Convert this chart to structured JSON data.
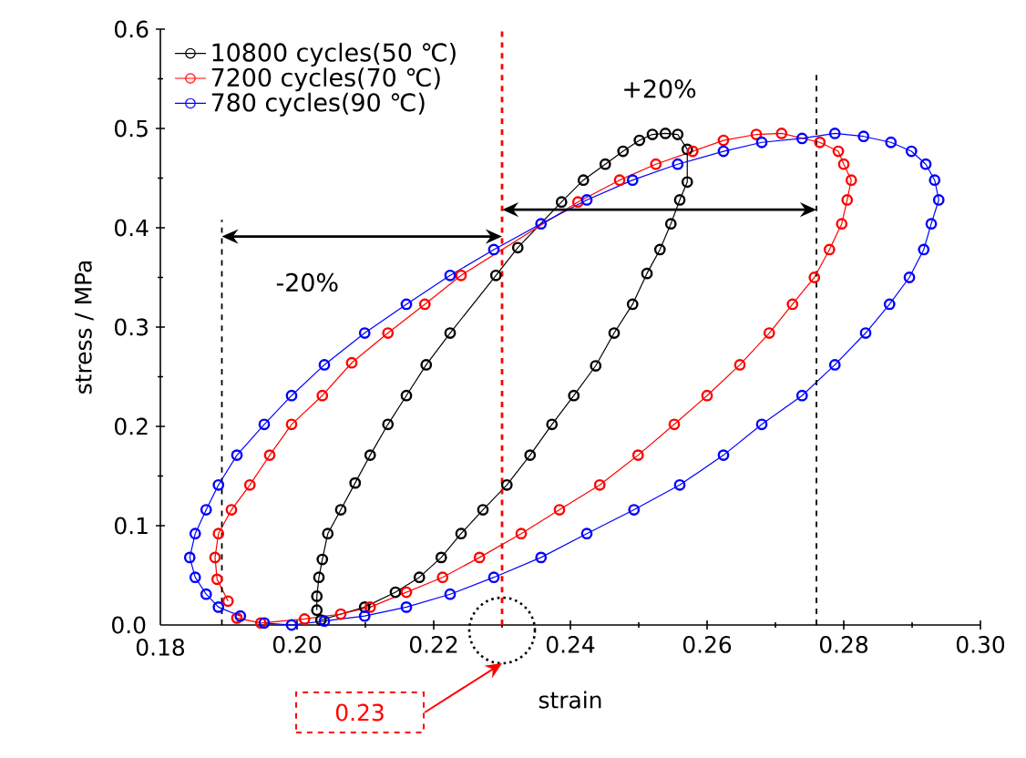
{
  "chart_data": {
    "type": "line",
    "xlabel": "strain",
    "ylabel": "stress / MPa",
    "xlim": [
      0.18,
      0.3
    ],
    "ylim": [
      0,
      0.6
    ],
    "xticks": [
      {
        "value": 0.18,
        "label": "0.18"
      },
      {
        "value": 0.2,
        "label": "0.20"
      },
      {
        "value": 0.22,
        "label": "0.22"
      },
      {
        "value": 0.24,
        "label": "0.24"
      },
      {
        "value": 0.26,
        "label": "0.26"
      },
      {
        "value": 0.28,
        "label": "0.28"
      },
      {
        "value": 0.3,
        "label": "0.30"
      }
    ],
    "yticks": [
      {
        "value": 0,
        "label": "0.0"
      },
      {
        "value": 0.1,
        "label": "0.1"
      },
      {
        "value": 0.2,
        "label": "0.2"
      },
      {
        "value": 0.3,
        "label": "0.3"
      },
      {
        "value": 0.4,
        "label": "0.4"
      },
      {
        "value": 0.5,
        "label": "0.5"
      },
      {
        "value": 0.6,
        "label": "0.6"
      }
    ],
    "legend": "top left",
    "marker": "circle",
    "line_style": "solid",
    "series": [
      {
        "name": "10800 cycles(50 ℃)",
        "color": "#000000",
        "x": [
          0.2029,
          0.2029,
          0.2032,
          0.2037,
          0.2045,
          0.2064,
          0.2085,
          0.2107,
          0.2133,
          0.216,
          0.2189,
          0.2224,
          0.2291,
          0.2323,
          0.2387,
          0.2419,
          0.2451,
          0.2477,
          0.2501,
          0.252,
          0.2539,
          0.2557,
          0.2571,
          0.2571,
          0.256,
          0.2547,
          0.2531,
          0.2512,
          0.2491,
          0.2464,
          0.2437,
          0.2405,
          0.2373,
          0.2341,
          0.2307,
          0.2272,
          0.224,
          0.2211,
          0.2179,
          0.2144,
          0.2099,
          0.2064,
          0.2035
        ],
        "values": [
          0.015,
          0.029,
          0.048,
          0.066,
          0.092,
          0.116,
          0.143,
          0.171,
          0.202,
          0.231,
          0.262,
          0.294,
          0.352,
          0.38,
          0.426,
          0.448,
          0.464,
          0.477,
          0.488,
          0.494,
          0.495,
          0.494,
          0.479,
          0.446,
          0.428,
          0.404,
          0.378,
          0.354,
          0.323,
          0.294,
          0.261,
          0.231,
          0.202,
          0.171,
          0.141,
          0.116,
          0.092,
          0.068,
          0.048,
          0.033,
          0.018,
          null,
          0.005
        ]
      },
      {
        "name": "7200 cycles(70 ℃)",
        "color": "#ff0000",
        "x": [
          0.1899,
          0.1883,
          0.188,
          0.1885,
          0.1904,
          0.1931,
          0.196,
          0.1992,
          0.2037,
          0.208,
          0.2133,
          0.2187,
          0.224,
          0.2411,
          0.2472,
          0.2525,
          0.2579,
          0.2624,
          0.2672,
          0.2709,
          0.2765,
          0.2792,
          0.28,
          0.2811,
          0.2805,
          0.2797,
          0.2779,
          0.2757,
          0.2725,
          0.2691,
          0.2648,
          0.26,
          0.2552,
          0.2499,
          0.2443,
          0.2384,
          0.2328,
          0.2267,
          0.2213,
          0.216,
          0.2107,
          0.2064,
          0.2011,
          0.1947,
          0.1912
        ],
        "values": [
          0.024,
          0.046,
          0.068,
          0.092,
          0.116,
          0.141,
          0.171,
          0.202,
          0.231,
          0.264,
          0.294,
          0.323,
          0.352,
          0.426,
          0.448,
          0.464,
          0.477,
          0.488,
          0.494,
          0.495,
          0.486,
          0.477,
          0.464,
          0.448,
          0.428,
          0.404,
          0.378,
          0.35,
          0.323,
          0.294,
          0.262,
          0.231,
          0.202,
          0.171,
          0.141,
          0.116,
          0.092,
          0.068,
          0.048,
          0.033,
          0.018,
          0.011,
          0.006,
          0.002,
          0.007
        ]
      },
      {
        "name": "780 cycles(90 ℃)",
        "color": "#0000ff",
        "x": [
          0.1952,
          0.1992,
          0.204,
          0.2099,
          0.216,
          0.2224,
          0.2288,
          0.2357,
          0.2424,
          0.2493,
          0.256,
          0.2624,
          0.268,
          0.2739,
          0.2787,
          0.2832,
          0.2867,
          0.2896,
          0.2917,
          0.2928,
          0.2939,
          0.2933,
          0.292,
          0.2899,
          0.2869,
          0.2829,
          0.2787,
          0.2739,
          0.268,
          0.2624,
          0.2557,
          0.2491,
          0.2424,
          0.2357,
          0.2288,
          0.2224,
          0.216,
          0.2099,
          0.204,
          0.1992,
          0.1952,
          0.1912,
          0.1885,
          0.1867,
          0.1851,
          0.1843,
          0.1851,
          0.1867,
          0.1885,
          0.1917
        ],
        "values": [
          0.002,
          0.0,
          0.004,
          0.009,
          0.018,
          0.031,
          0.048,
          0.068,
          0.092,
          0.116,
          0.141,
          0.171,
          0.202,
          0.231,
          0.262,
          0.294,
          0.323,
          0.35,
          0.378,
          0.404,
          0.428,
          0.448,
          0.464,
          0.477,
          0.486,
          0.492,
          0.495,
          0.49,
          0.486,
          0.477,
          0.464,
          0.448,
          0.428,
          0.404,
          0.378,
          0.352,
          0.323,
          0.294,
          0.262,
          0.231,
          0.202,
          0.171,
          0.141,
          0.116,
          0.092,
          0.068,
          0.048,
          0.031,
          0.018,
          0.009
        ]
      }
    ],
    "ref_lines": [
      {
        "axis": "x",
        "value": 0.189,
        "color": "#000000",
        "line_style": "dashed"
      },
      {
        "axis": "x",
        "value": 0.23,
        "label": "0.23",
        "color": "#ff0000",
        "line_style": "dashed"
      },
      {
        "axis": "x",
        "value": 0.276,
        "color": "#000000",
        "line_style": "dashed"
      }
    ],
    "annotations": [
      "-20%",
      "+20%"
    ]
  }
}
